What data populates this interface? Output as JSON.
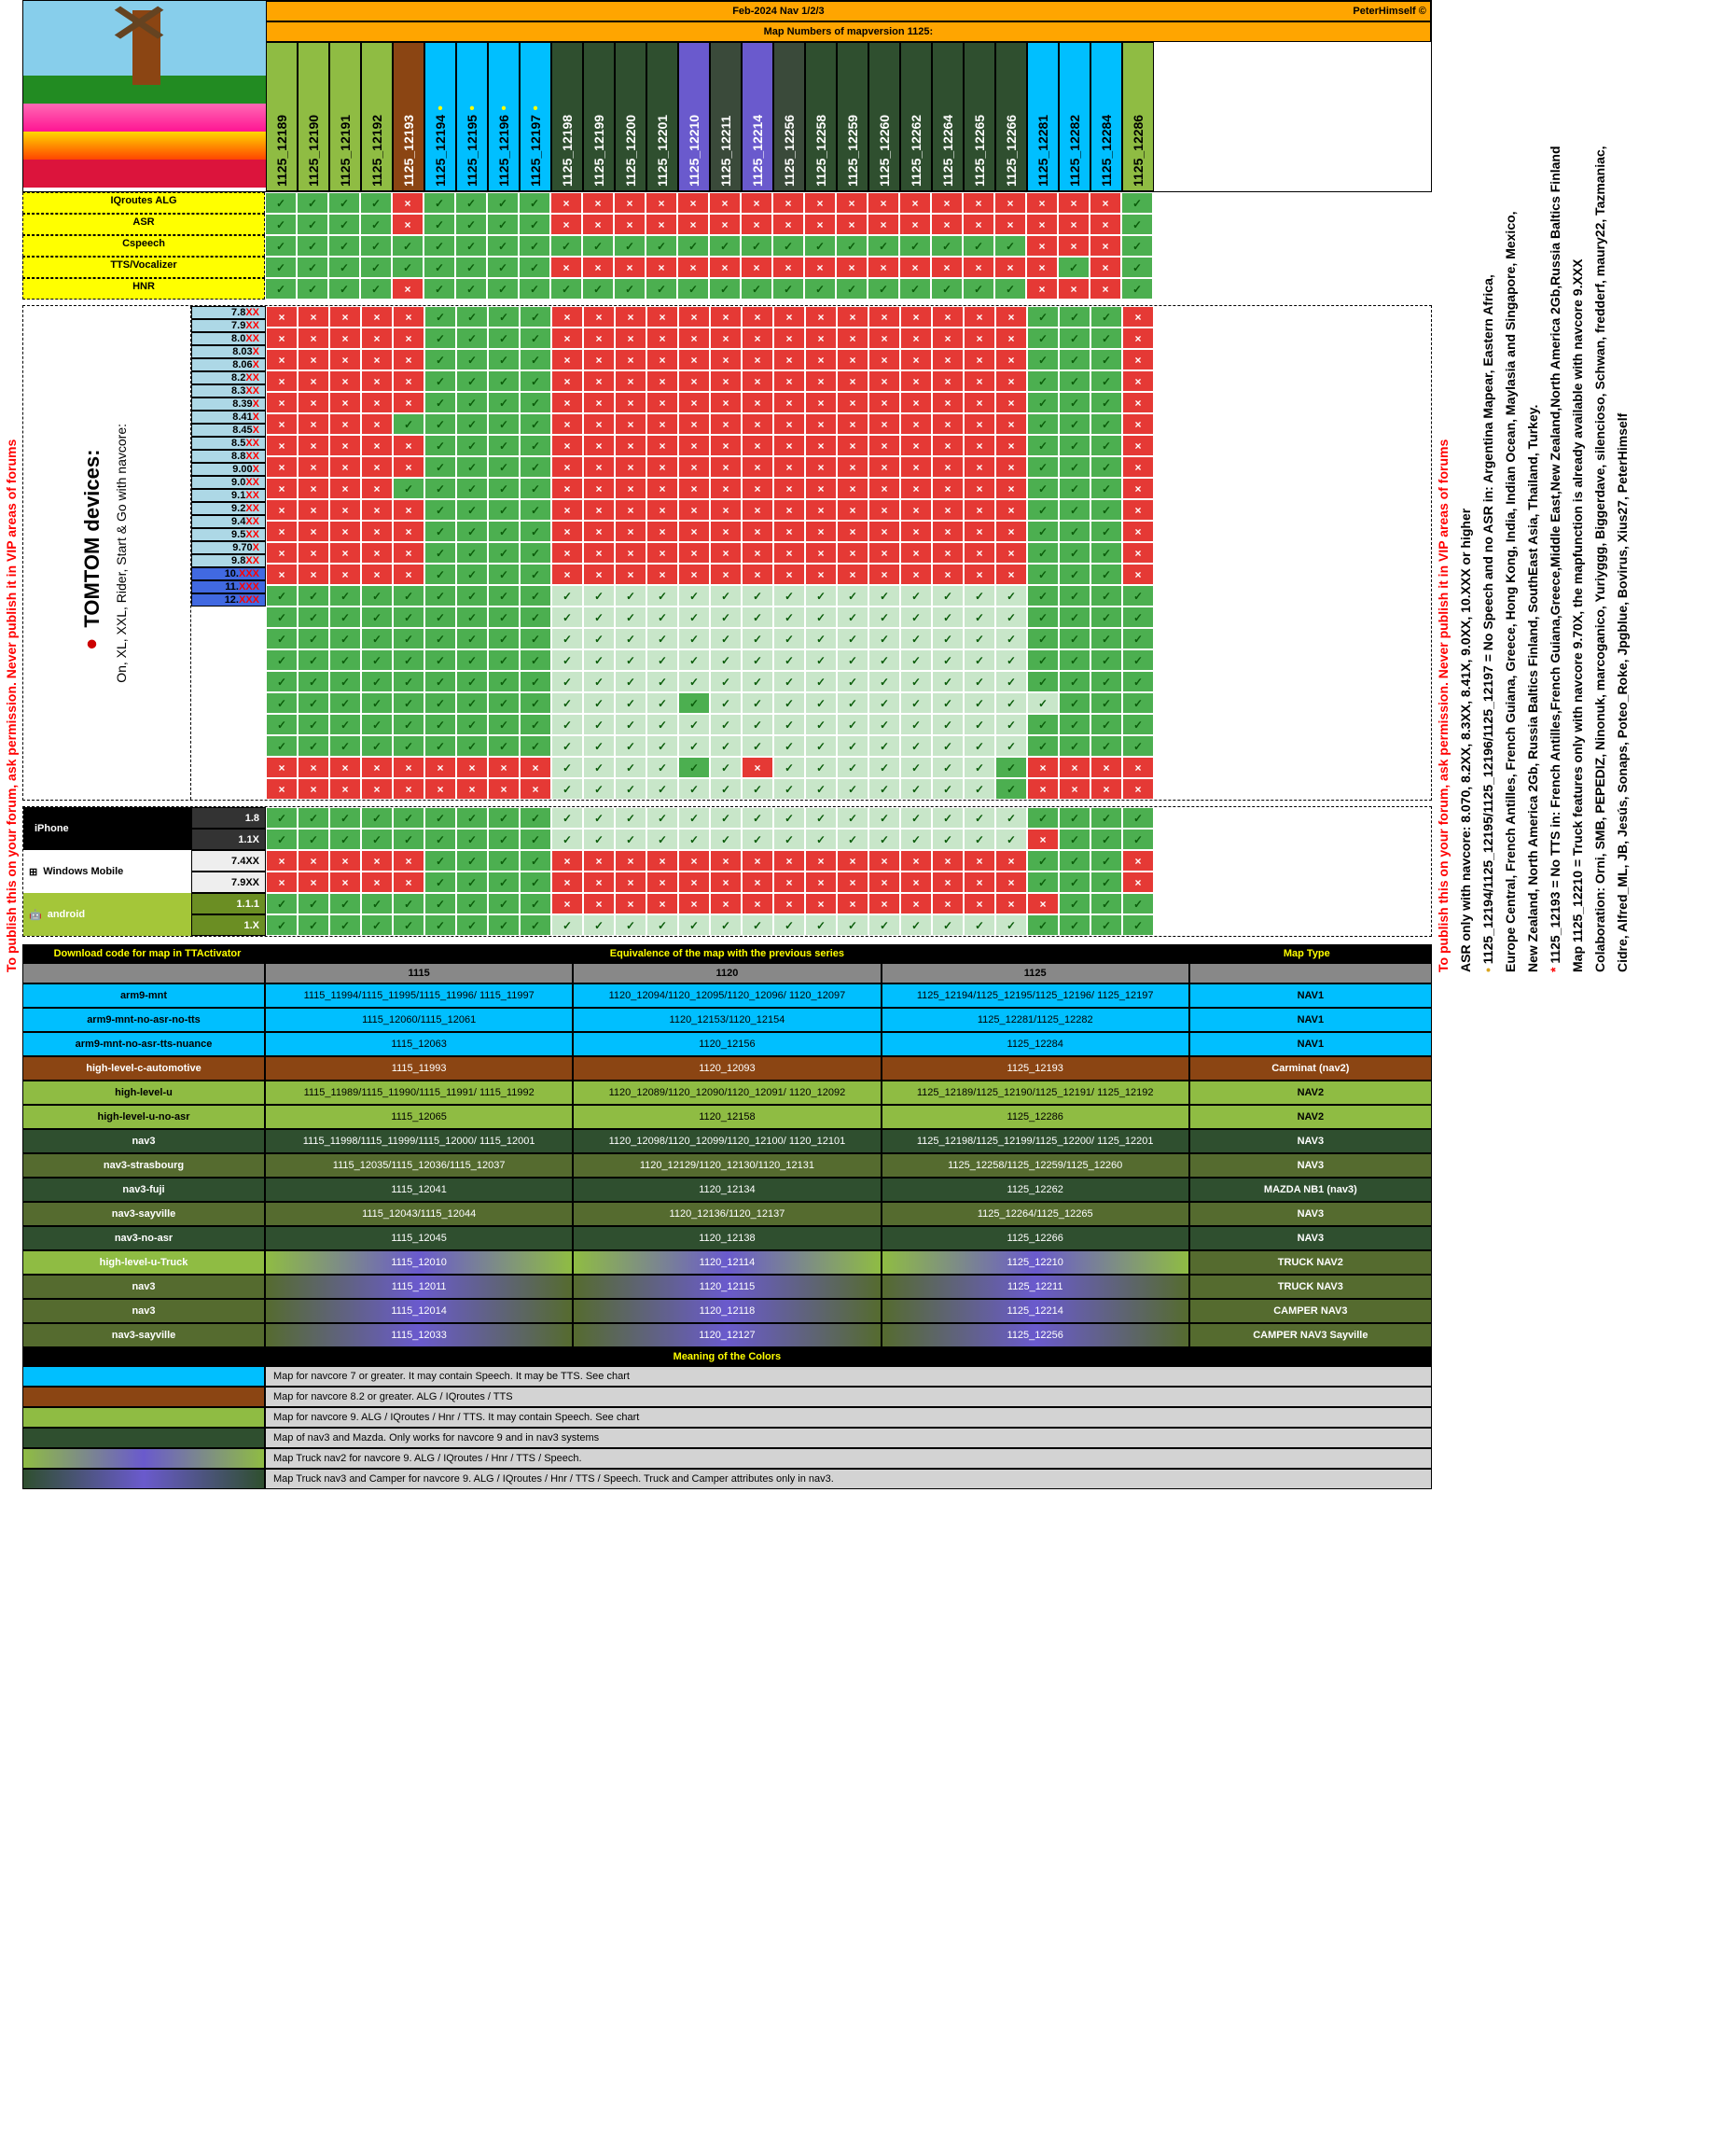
{
  "header": {
    "title": "Feb-2024  Nav 1/2/3",
    "author": "PeterHimself ©",
    "subtitle": "Map Numbers of mapversion 1125:"
  },
  "features": [
    "IQroutes ALG",
    "ASR",
    "Cspeech",
    "TTS/Vocalizer",
    "HNR"
  ],
  "mapHeaders": [
    {
      "id": "1125_12189",
      "color": "#8fbc43"
    },
    {
      "id": "1125_12190",
      "color": "#8fbc43"
    },
    {
      "id": "1125_12191",
      "color": "#8fbc43"
    },
    {
      "id": "1125_12192",
      "color": "#8fbc43"
    },
    {
      "id": "1125_12193",
      "color": "#8b4513",
      "textColor": "#fff"
    },
    {
      "id": "1125_12194",
      "color": "#00bfff",
      "star": true
    },
    {
      "id": "1125_12195",
      "color": "#00bfff",
      "star": true
    },
    {
      "id": "1125_12196",
      "color": "#00bfff",
      "star": true
    },
    {
      "id": "1125_12197",
      "color": "#00bfff",
      "star": true
    },
    {
      "id": "1125_12198",
      "color": "#2f4f2f",
      "textColor": "#fff"
    },
    {
      "id": "1125_12199",
      "color": "#2f4f2f",
      "textColor": "#fff"
    },
    {
      "id": "1125_12200",
      "color": "#2f4f2f",
      "textColor": "#fff"
    },
    {
      "id": "1125_12201",
      "color": "#2f4f2f",
      "textColor": "#fff"
    },
    {
      "id": "1125_12210",
      "color": "#6a5acd",
      "textColor": "#fff"
    },
    {
      "id": "1125_12211",
      "color": "#3a4a3a",
      "textColor": "#fff"
    },
    {
      "id": "1125_12214",
      "color": "#6a5acd",
      "textColor": "#fff"
    },
    {
      "id": "1125_12256",
      "color": "#3a4a3a",
      "textColor": "#fff"
    },
    {
      "id": "1125_12258",
      "color": "#2f4f2f",
      "textColor": "#fff"
    },
    {
      "id": "1125_12259",
      "color": "#2f4f2f",
      "textColor": "#fff"
    },
    {
      "id": "1125_12260",
      "color": "#2f4f2f",
      "textColor": "#fff"
    },
    {
      "id": "1125_12262",
      "color": "#2f4f2f",
      "textColor": "#fff"
    },
    {
      "id": "1125_12264",
      "color": "#2f4f2f",
      "textColor": "#fff"
    },
    {
      "id": "1125_12265",
      "color": "#2f4f2f",
      "textColor": "#fff"
    },
    {
      "id": "1125_12266",
      "color": "#2f4f2f",
      "textColor": "#fff"
    },
    {
      "id": "1125_12281",
      "color": "#00bfff"
    },
    {
      "id": "1125_12282",
      "color": "#00bfff"
    },
    {
      "id": "1125_12284",
      "color": "#00bfff"
    },
    {
      "id": "1125_12286",
      "color": "#8fbc43"
    }
  ],
  "featureGrid": [
    "yyyynyyyynnnnnnnnnnnnnnnnnny",
    "yyyynyyyynnnnnnnnnnnnnnnnnny",
    "yyyyyyyyyyyyyyyyyyyyyyyynnny",
    "yyyyyyyyynnnnnnnnnnnnnnnnyny",
    "yyyynyyyyyyyyyyyyyyyyyyynnny"
  ],
  "deviceLabel": {
    "brand": "TOMTOM devices:",
    "sub": "On, XL, XXL, Rider, Start & Go with navcore:"
  },
  "navcores": [
    {
      "v": "7.8",
      "x": "XX",
      "bg": "#add8e6",
      "row": "nnnnnyyyynnnnnnnnnnnnnnnyyyn"
    },
    {
      "v": "7.9",
      "x": "XX",
      "bg": "#add8e6",
      "row": "nnnnnyyyynnnnnnnnnnnnnnnyyyn"
    },
    {
      "v": "8.0",
      "x": "XX",
      "bg": "#add8e6",
      "row": "nnnnnyyyynnnnnnnnnnnnnnnyyyn"
    },
    {
      "v": "8.03",
      "x": "X",
      "bg": "#add8e6",
      "row": "nnnnnyyyynnnnnnnnnnnnnnnyyyn"
    },
    {
      "v": "8.06",
      "x": "X",
      "bg": "#add8e6",
      "row": "nnnnnyyyynnnnnnnnnnnnnnnyyyn"
    },
    {
      "v": "8.2",
      "x": "XX",
      "bg": "#add8e6",
      "row": "nnnnyyyyynnnnnnnnnnnnnnnyyyn"
    },
    {
      "v": "8.3",
      "x": "XX",
      "bg": "#add8e6",
      "row": "nnnnnyyyynnnnnnnnnnnnnnnyyyn"
    },
    {
      "v": "8.39",
      "x": "X",
      "bg": "#add8e6",
      "row": "nnnnnyyyynnnnnnnnnnnnnnnyyyn"
    },
    {
      "v": "8.41",
      "x": "X",
      "bg": "#add8e6",
      "row": "nnnnyyyyynnnnnnnnnnnnnnnyyyn"
    },
    {
      "v": "8.45",
      "x": "X",
      "bg": "#add8e6",
      "row": "nnnnnyyyynnnnnnnnnnnnnnnyyyn"
    },
    {
      "v": "8.5",
      "x": "XX",
      "bg": "#add8e6",
      "row": "nnnnnyyyynnnnnnnnnnnnnnnyyyn"
    },
    {
      "v": "8.8",
      "x": "XX",
      "bg": "#add8e6",
      "row": "nnnnnyyyynnnnnnnnnnnnnnnyyyn"
    },
    {
      "v": "9.00",
      "x": "X",
      "bg": "#add8e6",
      "row": "nnnnnyyyynnnnnnnnnnnnnnnyyyn"
    },
    {
      "v": "9.0",
      "x": "XX",
      "bg": "#add8e6",
      "row": "yyyyyyyyylllllllllllllllyyyy"
    },
    {
      "v": "9.1",
      "x": "XX",
      "bg": "#add8e6",
      "row": "yyyyyyyyylllllllllllllllyyyy"
    },
    {
      "v": "9.2",
      "x": "XX",
      "bg": "#add8e6",
      "row": "yyyyyyyyylllllllllllllllyyyy"
    },
    {
      "v": "9.4",
      "x": "XX",
      "bg": "#add8e6",
      "row": "yyyyyyyyylllllllllllllllyyyy"
    },
    {
      "v": "9.5",
      "x": "XX",
      "bg": "#add8e6",
      "row": "yyyyyyyyylllllllllllllllyyyy"
    },
    {
      "v": "9.70",
      "x": "X",
      "bg": "#add8e6",
      "row": "yyyyyyyyyllllylllllllllllyyy"
    },
    {
      "v": "9.8",
      "x": "XX",
      "bg": "#add8e6",
      "row": "yyyyyyyyylllllllllllllllyyyy"
    },
    {
      "v": "10.",
      "x": "XXX",
      "bg": "#4169e1",
      "row": "yyyyyyyyylllllllllllllllyyyy"
    },
    {
      "v": "11.",
      "x": "XXX",
      "bg": "#4169e1",
      "row": "nnnnnnnnnllllylnlllllllynnnn"
    },
    {
      "v": "12.",
      "x": "XXX",
      "bg": "#4169e1",
      "row": "nnnnnnnnnllllllllllllllynnnn"
    }
  ],
  "platforms": [
    {
      "name": "iPhone",
      "icon": "apple",
      "bg": "#000",
      "versions": [
        {
          "v": "1.8",
          "x": "",
          "bg": "#333",
          "fg": "#fff",
          "row": "yyyyyyyyylllllllllllllllyyyy"
        },
        {
          "v": "1.1",
          "x": "X",
          "bg": "#333",
          "fg": "#fff",
          "row": "yyyyyyyyylllllllllllllllnyyy"
        }
      ]
    },
    {
      "name": "Windows Mobile",
      "icon": "win",
      "bg": "#fff",
      "versions": [
        {
          "v": "7.4",
          "x": "XX",
          "bg": "#eee",
          "fg": "#000",
          "row": "nnnnnyyyynnnnnnnnnnnnnnnyyyn"
        },
        {
          "v": "7.9",
          "x": "XX",
          "bg": "#eee",
          "fg": "#000",
          "row": "nnnnnyyyynnnnnnnnnnnnnnnyyyn"
        }
      ]
    },
    {
      "name": "android",
      "icon": "android",
      "bg": "#a4c639",
      "versions": [
        {
          "v": "1.1.1",
          "x": "",
          "bg": "#6b8e23",
          "fg": "#fff",
          "row": "yyyyyyyyynnnnnnnnnnnnnnnnyyy"
        },
        {
          "v": "1.",
          "x": "X",
          "bg": "#6b8e23",
          "fg": "#fff",
          "row": "yyyyyyyyylllllllllllllllyyyy"
        }
      ]
    }
  ],
  "equivTitle": {
    "c1": "Download code for map in TTActivator",
    "c2": "Equivalence of the map with the previous series",
    "c3": "Map Type"
  },
  "equivHead": [
    "1115",
    "1120",
    "1125"
  ],
  "equivRows": [
    {
      "code": "arm9-mnt",
      "c": [
        "1115_11994/1115_11995/1115_11996/ 1115_11997",
        "1120_12094/1120_12095/1120_12096/ 1120_12097",
        "1125_12194/1125_12195/1125_12196/ 1125_12197"
      ],
      "type": "NAV1",
      "colors": [
        "#00bfff",
        "#00bfff",
        "#00bfff",
        "#00bfff",
        "#00bfff"
      ]
    },
    {
      "code": "arm9-mnt-no-asr-no-tts",
      "c": [
        "1115_12060/1115_12061",
        "1120_12153/1120_12154",
        "1125_12281/1125_12282"
      ],
      "type": "NAV1",
      "colors": [
        "#00bfff",
        "#00bfff",
        "#00bfff",
        "#00bfff",
        "#00bfff"
      ]
    },
    {
      "code": "arm9-mnt-no-asr-tts-nuance",
      "c": [
        "1115_12063",
        "1120_12156",
        "1125_12284"
      ],
      "type": "NAV1",
      "colors": [
        "#00bfff",
        "#00bfff",
        "#00bfff",
        "#00bfff",
        "#00bfff"
      ]
    },
    {
      "code": "high-level-c-automotive",
      "c": [
        "1115_11993",
        "1120_12093",
        "1125_12193"
      ],
      "type": "Carminat (nav2)",
      "colors": [
        "#8b4513",
        "#8b4513",
        "#8b4513",
        "#8b4513",
        "#8b4513"
      ],
      "fg": "#fff"
    },
    {
      "code": "high-level-u",
      "c": [
        "1115_11989/1115_11990/1115_11991/ 1115_11992",
        "1120_12089/1120_12090/1120_12091/ 1120_12092",
        "1125_12189/1125_12190/1125_12191/ 1125_12192"
      ],
      "type": "NAV2",
      "colors": [
        "#8fbc43",
        "#8fbc43",
        "#8fbc43",
        "#8fbc43",
        "#8fbc43"
      ]
    },
    {
      "code": "high-level-u-no-asr",
      "c": [
        "1115_12065",
        "1120_12158",
        "1125_12286"
      ],
      "type": "NAV2",
      "colors": [
        "#8fbc43",
        "#8fbc43",
        "#8fbc43",
        "#8fbc43",
        "#8fbc43"
      ]
    },
    {
      "code": "nav3",
      "c": [
        "1115_11998/1115_11999/1115_12000/ 1115_12001",
        "1120_12098/1120_12099/1120_12100/ 1120_12101",
        "1125_12198/1125_12199/1125_12200/ 1125_12201"
      ],
      "type": "NAV3",
      "colors": [
        "#2f4f2f",
        "#2f4f2f",
        "#2f4f2f",
        "#2f4f2f",
        "#2f4f2f"
      ],
      "fg": "#fff"
    },
    {
      "code": "nav3-strasbourg",
      "c": [
        "1115_12035/1115_12036/1115_12037",
        "1120_12129/1120_12130/1120_12131",
        "1125_12258/1125_12259/1125_12260"
      ],
      "type": "NAV3",
      "colors": [
        "#556b2f",
        "#556b2f",
        "#556b2f",
        "#556b2f",
        "#556b2f"
      ],
      "fg": "#fff"
    },
    {
      "code": "nav3-fuji",
      "c": [
        "1115_12041",
        "1120_12134",
        "1125_12262"
      ],
      "type": "MAZDA NB1 (nav3)",
      "colors": [
        "#2f4f2f",
        "#2f4f2f",
        "#2f4f2f",
        "#2f4f2f",
        "#2f4f2f"
      ],
      "fg": "#fff"
    },
    {
      "code": "nav3-sayville",
      "c": [
        "1115_12043/1115_12044",
        "1120_12136/1120_12137",
        "1125_12264/1125_12265"
      ],
      "type": "NAV3",
      "colors": [
        "#556b2f",
        "#556b2f",
        "#556b2f",
        "#556b2f",
        "#556b2f"
      ],
      "fg": "#fff"
    },
    {
      "code": "nav3-no-asr",
      "c": [
        "1115_12045",
        "1120_12138",
        "1125_12266"
      ],
      "type": "NAV3",
      "colors": [
        "#2f4f2f",
        "#2f4f2f",
        "#2f4f2f",
        "#2f4f2f",
        "#2f4f2f"
      ],
      "fg": "#fff"
    },
    {
      "code": "high-level-u-Truck",
      "c": [
        "1115_12010",
        "1120_12114",
        "1125_12210"
      ],
      "type": "TRUCK NAV2",
      "colors": [
        "#8fbc43",
        "#6a5acd",
        "#6a5acd",
        "#6a5acd",
        "#556b2f"
      ],
      "fg": "#fff",
      "grad": true
    },
    {
      "code": "nav3",
      "c": [
        "1115_12011",
        "1120_12115",
        "1125_12211"
      ],
      "type": "TRUCK NAV3",
      "colors": [
        "#556b2f",
        "#6a5acd",
        "#6a5acd",
        "#6a5acd",
        "#556b2f"
      ],
      "fg": "#fff",
      "grad": true
    },
    {
      "code": "nav3",
      "c": [
        "1115_12014",
        "1120_12118",
        "1125_12214"
      ],
      "type": "CAMPER NAV3",
      "colors": [
        "#556b2f",
        "#6a5acd",
        "#6a5acd",
        "#6a5acd",
        "#556b2f"
      ],
      "fg": "#fff",
      "grad": true
    },
    {
      "code": "nav3-sayville",
      "c": [
        "1115_12033",
        "1120_12127",
        "1125_12256"
      ],
      "type": "CAMPER NAV3 Sayville",
      "colors": [
        "#556b2f",
        "#6a5acd",
        "#6a5acd",
        "#6a5acd",
        "#556b2f"
      ],
      "fg": "#fff",
      "grad": true
    }
  ],
  "meaningTitle": "Meaning of the Colors",
  "meanings": [
    {
      "color": "#00bfff",
      "text": "Map for navcore 7 or greater. It may contain Speech. It may be TTS. See chart"
    },
    {
      "color": "#8b4513",
      "text": "Map for navcore 8.2 or greater. ALG / IQroutes / TTS"
    },
    {
      "color": "#8fbc43",
      "text": "Map for navcore 9. ALG / IQroutes / Hnr / TTS. It may contain Speech. See chart"
    },
    {
      "color": "#2f4f2f",
      "text": "Map of nav3 and Mazda. Only works for navcore 9 and in nav3 systems"
    },
    {
      "color": "grad1",
      "text": "Map Truck nav2 for navcore 9. ALG / IQroutes / Hnr / TTS / Speech."
    },
    {
      "color": "grad2",
      "text": "Map Truck nav3 and Camper for navcore 9. ALG / IQroutes / Hnr / TTS / Speech. Truck and Camper attributes only in nav3."
    }
  ],
  "sideNotes": [
    {
      "text": "To publish this on your forum, ask permission. Never publish it in VIP areas of forums",
      "color": "#ff0000"
    },
    {
      "text": "ASR only with navcore: 8.070, 8.2XX, 8.3XX, 8.41X, 9.0XX, 10.XXX or higher",
      "color": "#000"
    },
    {
      "text": "1125_12194/1125_12195/1125_12196/1125_12197 = No Speech and no ASR in: Argentina Mapear, Eastern Africa,",
      "color": "#000",
      "bullet": "•",
      "bc": "#daa520"
    },
    {
      "text": "Europe Central, French Antilles, French Guiana, Greece, Hong Kong, India, Indian Ocean, Maylasia and Singapore, Mexico,",
      "color": "#000"
    },
    {
      "text": "New Zealand, North America 2Gb, Russia Baltics Finland, SouthEast Asia, Thailand, Turkey.",
      "color": "#000"
    },
    {
      "text": "1125_12193 = No TTS in: French Antilles,French Guiana,Greece,Middle East,New Zealand,North America 2Gb,Russia Baltics Finland",
      "color": "#000",
      "bullet": "*",
      "bc": "#ff0000"
    },
    {
      "text": "Map 1125_12210 = Truck features only with navcore 9.70X, the mapfunction is already available with navcore 9.XXX",
      "color": "#000"
    },
    {
      "text": "Colaboration: Orni, SMB, PEPEDIZ, Ninonuk, marcoganico, Yuriyggg, Biggerdave, silencioso, Schwan, fredderf, maury22, Tazmaniac,",
      "color": "#000"
    },
    {
      "text": "Cidre, Alfred_ML, JB, Jesús, Sonaps, Poteo_Roke, Jpgblue, Bovirus, Xius27, PeterHimself",
      "color": "#000"
    }
  ],
  "leftRedNote": "To publish this on your forum, ask permission. Never publish it in VIP areas of forums"
}
